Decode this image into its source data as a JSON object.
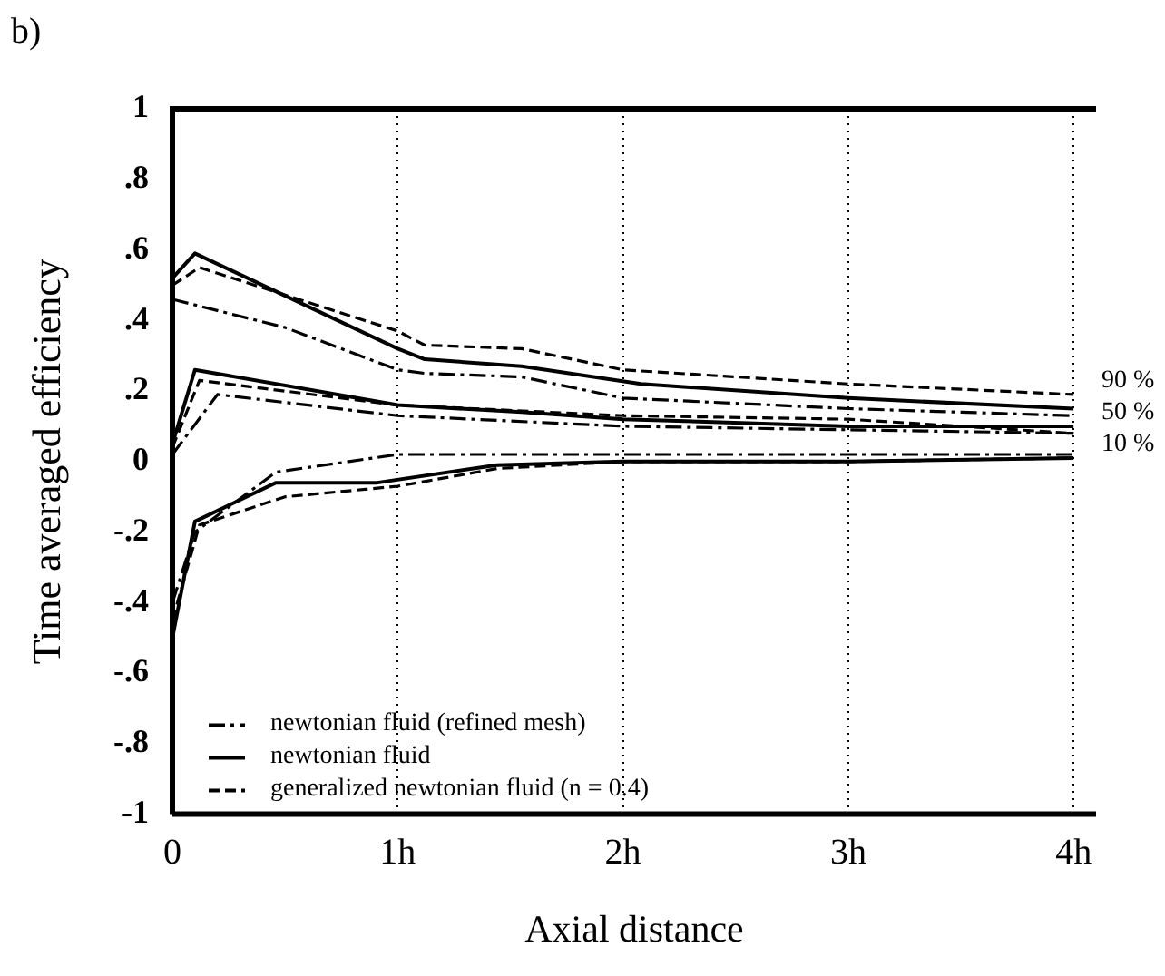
{
  "chart_data": {
    "type": "line",
    "title": "b)",
    "xlabel": "Axial distance",
    "ylabel": "Time averaged efficiency",
    "xlim": [
      0,
      4.1
    ],
    "xticks": [
      0,
      {
        "value": 1,
        "label": "1h"
      },
      {
        "value": 2,
        "label": "2h"
      },
      {
        "value": 3,
        "label": "3h"
      },
      {
        "value": 4,
        "label": "4h"
      }
    ],
    "ylim": [
      -1,
      1
    ],
    "yticks": [
      {
        "value": -1,
        "label": "-1"
      },
      {
        "value": -0.8,
        "label": "-.8"
      },
      {
        "value": -0.6,
        "label": "-.6"
      },
      {
        "value": -0.4,
        "label": "-.4"
      },
      {
        "value": -0.2,
        "label": "-.2"
      },
      0,
      {
        "value": 0.2,
        "label": ".2"
      },
      {
        "value": 0.4,
        "label": ".4"
      },
      {
        "value": 0.6,
        "label": ".6"
      },
      {
        "value": 0.8,
        "label": ".8"
      },
      1
    ],
    "grid": "x",
    "legend": "bottom left",
    "marker": "none",
    "series": [
      {
        "name": "newtonian fluid (refined mesh)",
        "color": "#000000",
        "line_style": "dashdot",
        "x": [
          0,
          0.5,
          1,
          1.12,
          1.55,
          2,
          3,
          4
        ],
        "values": [
          0.46,
          0.38,
          0.26,
          0.25,
          0.24,
          0.18,
          0.15,
          0.13
        ]
      },
      {
        "name": "newtonian fluid",
        "color": "#000000",
        "line_style": "solid",
        "x": [
          0,
          0.1,
          1,
          1.12,
          1.55,
          2.08,
          3,
          4
        ],
        "values": [
          0.52,
          0.59,
          0.32,
          0.29,
          0.27,
          0.22,
          0.18,
          0.15
        ]
      },
      {
        "name": "generalized newtonian fluid (n = 0.4)",
        "color": "#000000",
        "line_style": "dashed",
        "x": [
          0,
          0.12,
          1,
          1.12,
          1.55,
          2,
          3,
          4
        ],
        "values": [
          0.5,
          0.55,
          0.37,
          0.33,
          0.32,
          0.26,
          0.22,
          0.19
        ]
      },
      {
        "color": "#000000",
        "line_style": "dashdot",
        "x": [
          0,
          0.2,
          1,
          2,
          3,
          4
        ],
        "values": [
          0.02,
          0.19,
          0.13,
          0.1,
          0.09,
          0.08
        ]
      },
      {
        "color": "#000000",
        "line_style": "solid",
        "x": [
          0,
          0.1,
          1,
          1.55,
          2,
          3,
          4
        ],
        "values": [
          0.05,
          0.26,
          0.16,
          0.14,
          0.12,
          0.1,
          0.1
        ]
      },
      {
        "color": "#000000",
        "line_style": "dashed",
        "x": [
          0,
          0.12,
          1,
          2,
          3,
          4
        ],
        "values": [
          0.04,
          0.23,
          0.16,
          0.13,
          0.12,
          0.08
        ]
      },
      {
        "color": "#000000",
        "line_style": "dashdot",
        "x": [
          0,
          0.1,
          0.46,
          1,
          2,
          3,
          4
        ],
        "values": [
          -0.4,
          -0.2,
          -0.03,
          0.02,
          0.02,
          0.02,
          0.02
        ]
      },
      {
        "color": "#000000",
        "line_style": "solid",
        "x": [
          0,
          0.1,
          0.46,
          0.91,
          1.44,
          2,
          3,
          4
        ],
        "values": [
          -0.5,
          -0.17,
          -0.06,
          -0.06,
          -0.01,
          0,
          0,
          0.01
        ]
      },
      {
        "color": "#000000",
        "line_style": "dashed",
        "x": [
          0,
          0.12,
          0.5,
          1,
          1.44,
          2,
          3,
          4
        ],
        "values": [
          -0.45,
          -0.18,
          -0.1,
          -0.07,
          -0.02,
          0,
          0,
          0.01
        ]
      }
    ],
    "annotations": [
      "90 %",
      "50 %",
      "10 %"
    ]
  }
}
